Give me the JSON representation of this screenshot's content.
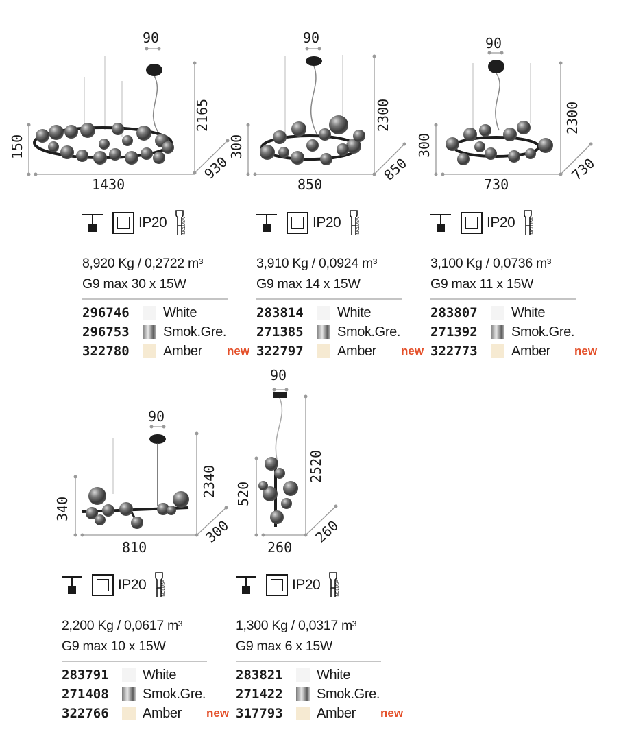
{
  "icons": {
    "ip_rating": "IP20",
    "bulb_label": "INCLUSA",
    "ceiling_icon": "ceiling-mount-icon",
    "class_icon": "double-insulation-icon",
    "bulb_icon": "g9-bulb-icon"
  },
  "colors": {
    "new_badge": "#e4502a",
    "dimension_line": "#9a9a9a",
    "divider": "#c4c4c4"
  },
  "products": [
    {
      "dimensions": {
        "hook": "90",
        "height_total": "2165",
        "height_body": "150",
        "width": "1430",
        "depth": "930"
      },
      "weight_volume": "8,920 Kg / 0,2722 m³",
      "lamp": "G9 max 30 x 15W",
      "variants": [
        {
          "code": "296746",
          "finish": "White",
          "new": ""
        },
        {
          "code": "296753",
          "finish": "Smok.Gre.",
          "new": ""
        },
        {
          "code": "322780",
          "finish": "Amber",
          "new": "new"
        }
      ]
    },
    {
      "dimensions": {
        "hook": "90",
        "height_total": "2300",
        "height_body": "300",
        "width": "850",
        "depth": "850"
      },
      "weight_volume": "3,910 Kg / 0,0924 m³",
      "lamp": "G9 max 14 x 15W",
      "variants": [
        {
          "code": "283814",
          "finish": "White",
          "new": ""
        },
        {
          "code": "271385",
          "finish": "Smok.Gre.",
          "new": ""
        },
        {
          "code": "322797",
          "finish": "Amber",
          "new": "new"
        }
      ]
    },
    {
      "dimensions": {
        "hook": "90",
        "height_total": "2300",
        "height_body": "300",
        "width": "730",
        "depth": "730"
      },
      "weight_volume": "3,100 Kg / 0,0736 m³",
      "lamp": "G9 max 11 x 15W",
      "variants": [
        {
          "code": "283807",
          "finish": "White",
          "new": ""
        },
        {
          "code": "271392",
          "finish": "Smok.Gre.",
          "new": ""
        },
        {
          "code": "322773",
          "finish": "Amber",
          "new": "new"
        }
      ]
    },
    {
      "dimensions": {
        "hook": "90",
        "height_total": "2340",
        "height_body": "340",
        "width": "810",
        "depth": "300"
      },
      "weight_volume": "2,200 Kg / 0,0617 m³",
      "lamp": "G9 max 10 x 15W",
      "variants": [
        {
          "code": "283791",
          "finish": "White",
          "new": ""
        },
        {
          "code": "271408",
          "finish": "Smok.Gre.",
          "new": ""
        },
        {
          "code": "322766",
          "finish": "Amber",
          "new": "new"
        }
      ]
    },
    {
      "dimensions": {
        "hook": "90",
        "height_total": "2520",
        "height_body": "520",
        "width": "260",
        "depth": "260"
      },
      "weight_volume": "1,300 Kg / 0,0317 m³",
      "lamp": "G9 max 6 x 15W",
      "variants": [
        {
          "code": "283821",
          "finish": "White",
          "new": ""
        },
        {
          "code": "271422",
          "finish": "Smok.Gre.",
          "new": ""
        },
        {
          "code": "317793",
          "finish": "Amber",
          "new": "new"
        }
      ]
    }
  ]
}
